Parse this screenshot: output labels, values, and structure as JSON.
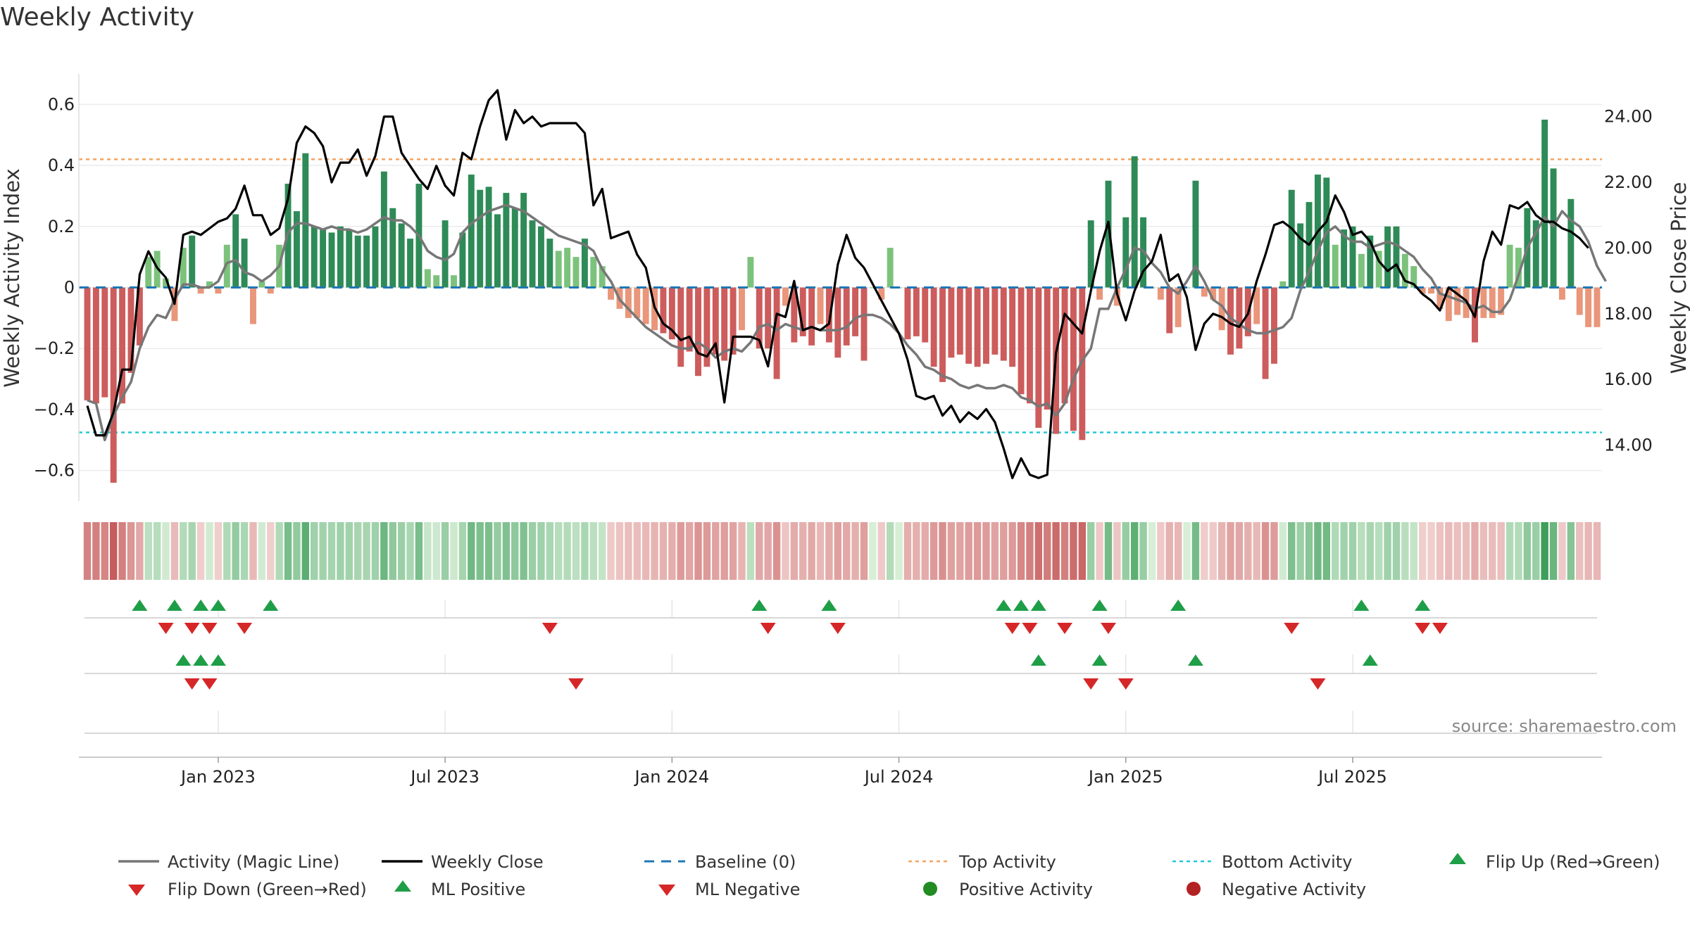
{
  "chart_data": {
    "type": "bar+line",
    "title": "Weekly Activity",
    "ylabel_left": "Weekly Activity Index",
    "ylabel_right": "Weekly Close Price",
    "ylim_left": [
      -0.7,
      0.7
    ],
    "ylim_right": [
      12.3,
      25.3
    ],
    "yticks_left": [
      {
        "v": 0.6,
        "label": "0.6"
      },
      {
        "v": 0.4,
        "label": "0.4"
      },
      {
        "v": 0.2,
        "label": "0.2"
      },
      {
        "v": 0,
        "label": "0"
      },
      {
        "v": -0.2,
        "label": "−0.2"
      },
      {
        "v": -0.4,
        "label": "−0.4"
      },
      {
        "v": -0.6,
        "label": "−0.6"
      }
    ],
    "yticks_right": [
      {
        "v": 24,
        "label": "24.00"
      },
      {
        "v": 22,
        "label": "22.00"
      },
      {
        "v": 20,
        "label": "20.00"
      },
      {
        "v": 18,
        "label": "18.00"
      },
      {
        "v": 16,
        "label": "16.00"
      },
      {
        "v": 14,
        "label": "14.00"
      }
    ],
    "xticks": [
      {
        "week": 15,
        "label": "Jan 2023"
      },
      {
        "week": 41,
        "label": "Jul 2023"
      },
      {
        "week": 67,
        "label": "Jan 2024"
      },
      {
        "week": 93,
        "label": "Jul 2024"
      },
      {
        "week": 119,
        "label": "Jan 2025"
      },
      {
        "week": 145,
        "label": "Jul 2025"
      }
    ],
    "top_activity": 0.42,
    "bottom_activity": -0.475,
    "colors": {
      "pos_strong": "#2e8b57",
      "pos_light": "#7cc27c",
      "neg_strong": "#cd5c5c",
      "neg_light": "#e9967a",
      "magic": "#777777",
      "close": "#000000",
      "baseline": "#1f77b4",
      "top": "#f4a460",
      "bottom": "#22c8d8",
      "flip_up": "#1e9e47",
      "flip_down": "#d62728",
      "pos_dot": "#228b22",
      "neg_dot": "#b22222"
    },
    "activity": [
      -0.37,
      -0.38,
      -0.36,
      -0.64,
      -0.38,
      -0.28,
      -0.19,
      0.1,
      0.12,
      0.03,
      -0.11,
      0.13,
      0.17,
      -0.02,
      0.02,
      -0.02,
      0.14,
      0.24,
      0.16,
      -0.12,
      0.02,
      -0.02,
      0.14,
      0.34,
      0.25,
      0.44,
      0.2,
      0.19,
      0.18,
      0.2,
      0.19,
      0.17,
      0.17,
      0.2,
      0.38,
      0.26,
      0.21,
      0.16,
      0.34,
      0.06,
      0.04,
      0.22,
      0.04,
      0.18,
      0.37,
      0.32,
      0.33,
      0.24,
      0.31,
      0.26,
      0.31,
      0.22,
      0.2,
      0.16,
      0.12,
      0.13,
      0.1,
      0.16,
      0.1,
      0.07,
      -0.04,
      -0.07,
      -0.1,
      -0.1,
      -0.12,
      -0.14,
      -0.15,
      -0.17,
      -0.26,
      -0.21,
      -0.29,
      -0.26,
      -0.22,
      -0.24,
      -0.22,
      -0.14,
      0.1,
      -0.2,
      -0.2,
      -0.3,
      -0.06,
      -0.18,
      -0.16,
      -0.19,
      -0.12,
      -0.18,
      -0.23,
      -0.19,
      -0.16,
      -0.24,
      0.0,
      -0.04,
      0.13,
      0.0,
      -0.17,
      -0.16,
      -0.18,
      -0.26,
      -0.31,
      -0.23,
      -0.22,
      -0.25,
      -0.26,
      -0.25,
      -0.22,
      -0.24,
      -0.26,
      -0.35,
      -0.38,
      -0.46,
      -0.4,
      -0.48,
      -0.38,
      -0.47,
      -0.5,
      0.22,
      -0.04,
      0.35,
      -0.06,
      0.23,
      0.43,
      0.23,
      0.0,
      -0.04,
      -0.15,
      -0.13,
      0.0,
      0.35,
      -0.03,
      -0.04,
      -0.14,
      -0.22,
      -0.2,
      -0.16,
      -0.12,
      -0.3,
      -0.25,
      0.02,
      0.32,
      0.21,
      0.28,
      0.37,
      0.36,
      0.14,
      0.19,
      0.2,
      0.11,
      0.17,
      0.12,
      0.2,
      0.2,
      0.11,
      0.07,
      -0.02,
      -0.02,
      -0.07,
      -0.11,
      -0.09,
      -0.1,
      -0.18,
      -0.1,
      -0.1,
      -0.09,
      0.14,
      0.13,
      0.26,
      0.22,
      0.55,
      0.39,
      -0.04,
      0.29,
      -0.09,
      -0.13,
      -0.13
    ],
    "magic_line": [
      -0.37,
      -0.38,
      -0.5,
      -0.42,
      -0.36,
      -0.31,
      -0.2,
      -0.13,
      -0.09,
      -0.1,
      -0.04,
      0.01,
      0.01,
      0.0,
      0.0,
      0.02,
      0.08,
      0.09,
      0.05,
      0.04,
      0.02,
      0.04,
      0.07,
      0.18,
      0.21,
      0.21,
      0.2,
      0.19,
      0.2,
      0.19,
      0.19,
      0.18,
      0.19,
      0.21,
      0.23,
      0.22,
      0.22,
      0.2,
      0.17,
      0.12,
      0.1,
      0.09,
      0.11,
      0.18,
      0.21,
      0.23,
      0.25,
      0.26,
      0.27,
      0.26,
      0.25,
      0.23,
      0.21,
      0.19,
      0.17,
      0.16,
      0.15,
      0.14,
      0.12,
      0.06,
      0.02,
      -0.04,
      -0.07,
      -0.1,
      -0.13,
      -0.15,
      -0.17,
      -0.19,
      -0.2,
      -0.2,
      -0.18,
      -0.2,
      -0.23,
      -0.21,
      -0.2,
      -0.21,
      -0.18,
      -0.13,
      -0.12,
      -0.14,
      -0.12,
      -0.13,
      -0.14,
      -0.13,
      -0.14,
      -0.14,
      -0.14,
      -0.13,
      -0.1,
      -0.09,
      -0.09,
      -0.1,
      -0.12,
      -0.15,
      -0.19,
      -0.22,
      -0.26,
      -0.27,
      -0.29,
      -0.3,
      -0.32,
      -0.33,
      -0.32,
      -0.33,
      -0.33,
      -0.32,
      -0.33,
      -0.36,
      -0.37,
      -0.39,
      -0.38,
      -0.42,
      -0.38,
      -0.3,
      -0.24,
      -0.2,
      -0.07,
      -0.07,
      0.0,
      0.06,
      0.13,
      0.12,
      0.08,
      0.05,
      0.0,
      -0.02,
      0.02,
      0.07,
      0.02,
      -0.04,
      -0.06,
      -0.1,
      -0.12,
      -0.14,
      -0.15,
      -0.15,
      -0.14,
      -0.13,
      -0.1,
      -0.01,
      0.05,
      0.12,
      0.18,
      0.2,
      0.17,
      0.15,
      0.15,
      0.13,
      0.14,
      0.15,
      0.14,
      0.12,
      0.1,
      0.06,
      0.03,
      -0.02,
      -0.03,
      -0.04,
      -0.05,
      -0.07,
      -0.06,
      -0.08,
      -0.08,
      -0.04,
      0.04,
      0.13,
      0.18,
      0.23,
      0.2,
      0.25,
      0.22,
      0.2,
      0.15,
      0.07,
      0.02
    ],
    "weekly_close": [
      15.2,
      14.3,
      14.3,
      15.0,
      16.3,
      16.3,
      19.2,
      19.9,
      19.4,
      19.1,
      18.3,
      20.4,
      20.5,
      20.4,
      20.6,
      20.8,
      20.9,
      21.2,
      21.9,
      21.0,
      21.0,
      20.4,
      20.6,
      21.5,
      23.2,
      23.7,
      23.5,
      23.1,
      22.0,
      22.6,
      22.6,
      23.0,
      22.2,
      22.8,
      24.0,
      24.0,
      22.9,
      22.5,
      22.1,
      21.8,
      22.5,
      21.9,
      21.6,
      22.9,
      22.7,
      23.7,
      24.5,
      24.8,
      23.3,
      24.2,
      23.8,
      24.0,
      23.7,
      23.8,
      23.8,
      23.8,
      23.8,
      23.5,
      21.3,
      21.8,
      20.3,
      20.4,
      20.5,
      19.8,
      19.4,
      18.2,
      17.7,
      17.5,
      17.2,
      17.3,
      16.8,
      16.7,
      17.1,
      15.3,
      17.3,
      17.3,
      17.3,
      17.2,
      16.4,
      18.0,
      17.9,
      19.0,
      17.5,
      17.6,
      17.5,
      17.7,
      19.5,
      20.4,
      19.7,
      19.4,
      18.9,
      18.4,
      17.9,
      17.4,
      16.6,
      15.5,
      15.4,
      15.5,
      14.9,
      15.2,
      14.7,
      15.0,
      14.8,
      15.1,
      14.7,
      13.9,
      13.0,
      13.6,
      13.1,
      13.0,
      13.1,
      16.8,
      18.0,
      17.7,
      17.4,
      18.7,
      19.9,
      20.8,
      18.6,
      17.8,
      18.7,
      19.3,
      19.6,
      20.4,
      19.0,
      19.2,
      18.5,
      16.9,
      17.7,
      18.0,
      17.9,
      17.7,
      17.6,
      18.0,
      19.0,
      19.8,
      20.7,
      20.8,
      20.6,
      20.3,
      20.1,
      20.5,
      20.8,
      21.6,
      21.1,
      20.4,
      20.5,
      20.2,
      19.6,
      19.3,
      19.5,
      19.0,
      18.9,
      18.6,
      18.4,
      18.1,
      18.8,
      18.6,
      18.4,
      17.9,
      19.6,
      20.5,
      20.1,
      21.3,
      21.2,
      21.4,
      21.0,
      20.8,
      20.8,
      20.6,
      20.5,
      20.3,
      20.0
    ],
    "flip_up_row1": [
      6,
      10,
      13,
      15,
      21,
      77,
      85,
      105,
      107,
      109,
      116,
      125,
      146,
      153
    ],
    "flip_down_row1": [
      9,
      12,
      14,
      18,
      53,
      78,
      86,
      106,
      108,
      112,
      117,
      138,
      153,
      155
    ],
    "ml_positive_row2": [
      11,
      13,
      15,
      109,
      116,
      127,
      147
    ],
    "ml_negative_row2": [
      12,
      14,
      56,
      115,
      119,
      141
    ],
    "legend": [
      "Activity (Magic Line)",
      "Weekly Close",
      "Baseline (0)",
      "Top Activity",
      "Bottom Activity",
      "Flip Up (Red→Green)",
      "Flip Down (Green→Red)",
      "ML Positive",
      "ML Negative",
      "Positive Activity",
      "Negative Activity"
    ]
  },
  "source_note": "source: sharemaestro.com"
}
